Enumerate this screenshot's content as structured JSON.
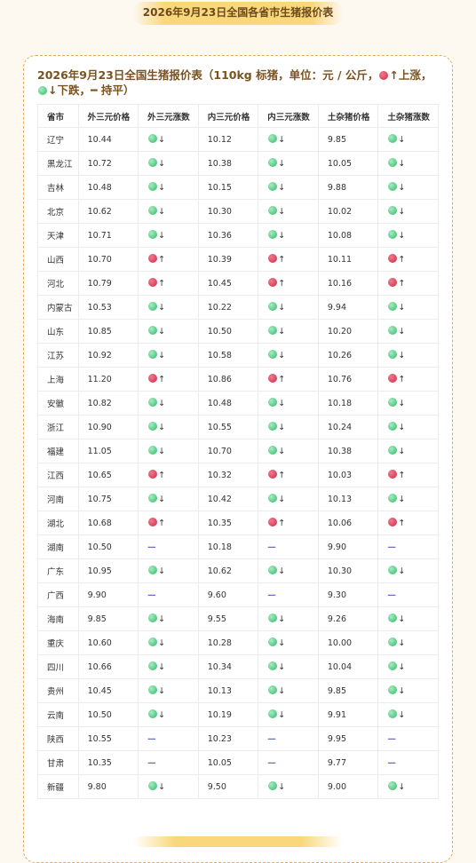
{
  "header": {
    "title": "2026年9月23日全国各省市生猪报价表"
  },
  "card": {
    "title_parts": [
      "2026年9月23日全国生猪报价表（110kg 标猪，单位：元 / 公斤，",
      "↑上涨，",
      "↓下跌，",
      "━ 持平）"
    ]
  },
  "table": {
    "columns": [
      "省市",
      "外三元价格",
      "外三元涨数",
      "内三元价格",
      "内三元涨数",
      "土杂猪价格",
      "土杂猪涨数"
    ],
    "rows": [
      [
        "辽宁",
        "10.44",
        "↓",
        "10.12",
        "↓",
        "9.85",
        "↓"
      ],
      [
        "黑龙江",
        "10.72",
        "↓",
        "10.38",
        "↓",
        "10.05",
        "↓"
      ],
      [
        "吉林",
        "10.48",
        "↓",
        "10.15",
        "↓",
        "9.88",
        "↓"
      ],
      [
        "北京",
        "10.62",
        "↓",
        "10.30",
        "↓",
        "10.02",
        "↓"
      ],
      [
        "天津",
        "10.71",
        "↓",
        "10.36",
        "↓",
        "10.08",
        "↓"
      ],
      [
        "山西",
        "10.70",
        "↑",
        "10.39",
        "↑",
        "10.11",
        "↑"
      ],
      [
        "河北",
        "10.79",
        "↑",
        "10.45",
        "↑",
        "10.16",
        "↑"
      ],
      [
        "内蒙古",
        "10.53",
        "↓",
        "10.22",
        "↓",
        "9.94",
        "↓"
      ],
      [
        "山东",
        "10.85",
        "↓",
        "10.50",
        "↓",
        "10.20",
        "↓"
      ],
      [
        "江苏",
        "10.92",
        "↓",
        "10.58",
        "↓",
        "10.26",
        "↓"
      ],
      [
        "上海",
        "11.20",
        "↑",
        "10.86",
        "↑",
        "10.76",
        "↑"
      ],
      [
        "安徽",
        "10.82",
        "↓",
        "10.48",
        "↓",
        "10.18",
        "↓"
      ],
      [
        "浙江",
        "10.90",
        "↓",
        "10.55",
        "↓",
        "10.24",
        "↓"
      ],
      [
        "福建",
        "11.05",
        "↓",
        "10.70",
        "↓",
        "10.38",
        "↓"
      ],
      [
        "江西",
        "10.65",
        "↑",
        "10.32",
        "↑",
        "10.03",
        "↑"
      ],
      [
        "河南",
        "10.75",
        "↓",
        "10.42",
        "↓",
        "10.13",
        "↓"
      ],
      [
        "湖北",
        "10.68",
        "↑",
        "10.35",
        "↑",
        "10.06",
        "↑"
      ],
      [
        "湖南",
        "10.50",
        "—",
        "10.18",
        "—",
        "9.90",
        "—"
      ],
      [
        "广东",
        "10.95",
        "↓",
        "10.62",
        "↓",
        "10.30",
        "↓"
      ],
      [
        "广西",
        "9.90",
        "—",
        "9.60",
        "—",
        "9.30",
        "—"
      ],
      [
        "海南",
        "9.85",
        "↓",
        "9.55",
        "↓",
        "9.26",
        "↓"
      ],
      [
        "重庆",
        "10.60",
        "↓",
        "10.28",
        "↓",
        "10.00",
        "↓"
      ],
      [
        "四川",
        "10.66",
        "↓",
        "10.34",
        "↓",
        "10.04",
        "↓"
      ],
      [
        "贵州",
        "10.45",
        "↓",
        "10.13",
        "↓",
        "9.85",
        "↓"
      ],
      [
        "云南",
        "10.50",
        "↓",
        "10.19",
        "↓",
        "9.91",
        "↓"
      ],
      [
        "陕西",
        "10.55",
        "—",
        "10.23",
        "—",
        "9.95",
        "—"
      ],
      [
        "甘肃",
        "10.35",
        "—",
        "10.05",
        "—",
        "9.77",
        "—"
      ],
      [
        "新疆",
        "9.80",
        "↓",
        "9.50",
        "↓",
        "9.00",
        "↓"
      ]
    ]
  }
}
